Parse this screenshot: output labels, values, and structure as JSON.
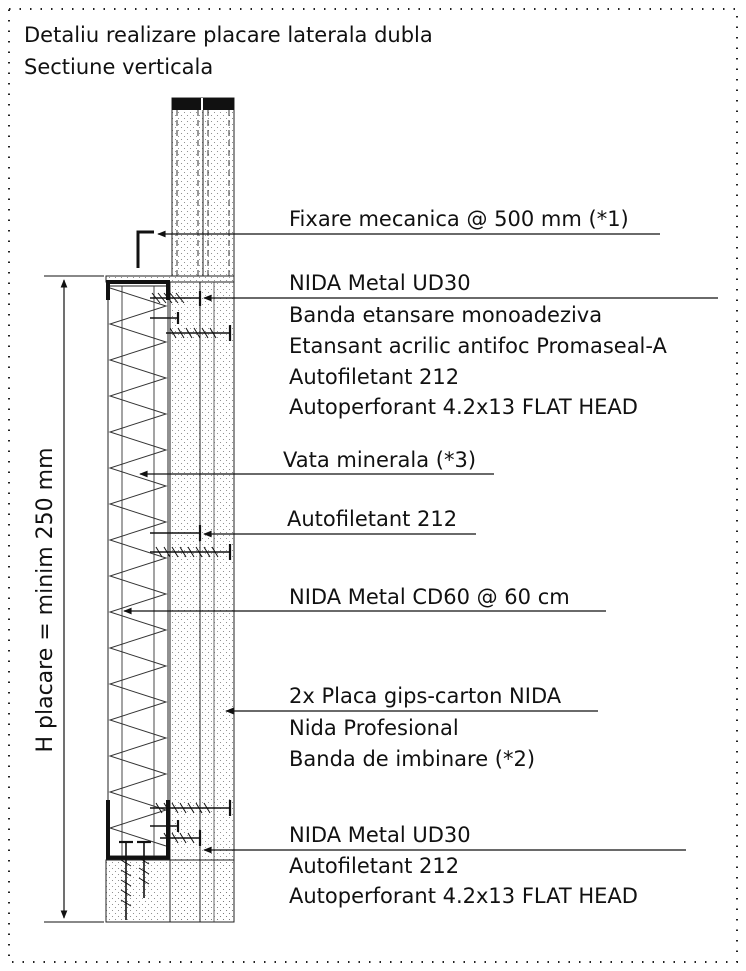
{
  "title": {
    "line1": "Detaliu realizare placare laterala dubla",
    "line2": "Sectiune verticala"
  },
  "dimension": {
    "text": "H placare = minim 250 mm"
  },
  "labels": {
    "fixare": "Fixare mecanica @ 500 mm (*1)",
    "ud30_top": "NIDA Metal UD30",
    "banda_etansare": "Banda etansare monoadeziva",
    "etansant": "Etansant acrilic antifoc Promaseal-A",
    "autofiletant_top": "Autofiletant 212",
    "autoperforant_top": "Autoperforant 4.2x13 FLAT HEAD",
    "vata": "Vata minerala (*3)",
    "autofiletant_mid": "Autofiletant 212",
    "cd60": "NIDA Metal CD60 @ 60 cm",
    "placa": "2x Placa gips-carton NIDA",
    "nida_prof": "Nida Profesional",
    "banda_imbinare": "Banda de imbinare (*2)",
    "ud30_bottom": "NIDA Metal UD30",
    "autofiletant_bottom": "Autofiletant 212",
    "autoperforant_bottom": "Autoperforant 4.2x13 FLAT HEAD"
  }
}
